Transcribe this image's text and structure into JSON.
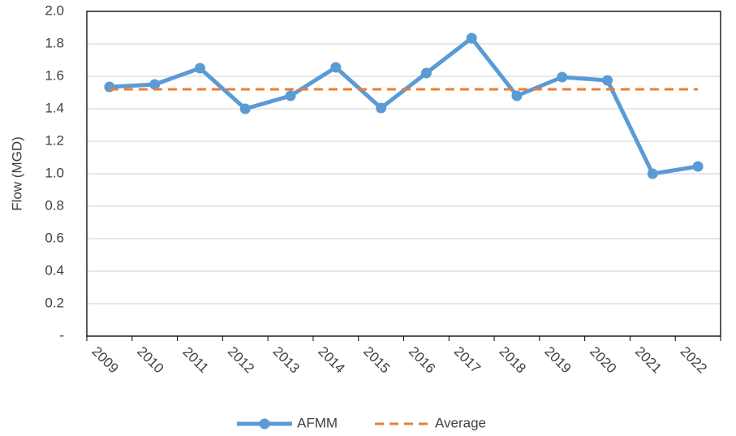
{
  "chart_data": {
    "type": "line",
    "y_label": "Flow (MGD)",
    "categories": [
      "2009",
      "2010",
      "2011",
      "2012",
      "2013",
      "2014",
      "2015",
      "2016",
      "2017",
      "2018",
      "2019",
      "2020",
      "2021",
      "2022"
    ],
    "series": [
      {
        "name": "AFMM",
        "color": "#5b9bd5",
        "style": "solid",
        "markers": true,
        "values": [
          1.535,
          1.55,
          1.65,
          1.4,
          1.48,
          1.655,
          1.405,
          1.62,
          1.835,
          1.48,
          1.595,
          1.575,
          1.0,
          1.045
        ]
      },
      {
        "name": "Average",
        "color": "#ed7d31",
        "style": "dashed",
        "markers": false,
        "values": [
          1.52,
          1.52,
          1.52,
          1.52,
          1.52,
          1.52,
          1.52,
          1.52,
          1.52,
          1.52,
          1.52,
          1.52,
          1.52,
          1.52
        ]
      }
    ],
    "ylim": [
      0,
      2.0
    ],
    "yticks": [
      {
        "value": 0,
        "label": "-"
      },
      0.2,
      0.4,
      0.6,
      0.8,
      {
        "value": 1.0,
        "label": "1.0"
      },
      1.2,
      1.4,
      1.6,
      1.8,
      {
        "value": 2.0,
        "label": "2.0"
      }
    ],
    "grid": true,
    "legend": "bottom"
  }
}
